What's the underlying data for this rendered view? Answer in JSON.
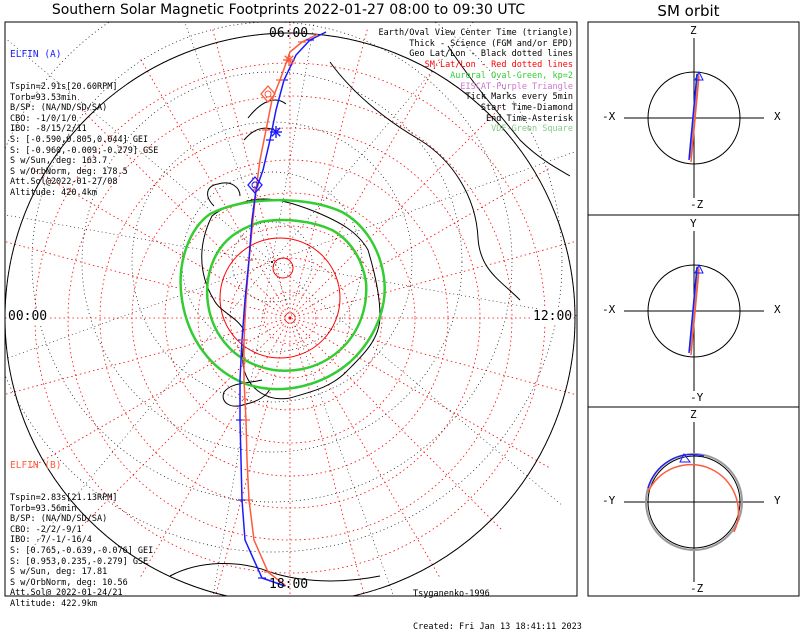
{
  "title": "Southern Solar Magnetic Footprints 2022-01-27 08:00 to 09:30 UTC",
  "orbit_title": "SM orbit",
  "time_labels": {
    "top": "06:00",
    "left": "00:00",
    "right": "12:00",
    "bottom": "18:00"
  },
  "elfin_a": {
    "name": "ELFIN (A)",
    "color": "#1a1aff",
    "lines": [
      "Tspin=2.91s[20.60RPM]",
      "Torb=93.53min",
      "B/SP: (NA/ND/SD/SA)",
      "CBO: -1/0/1/0",
      "IBO: -8/15/2/11",
      "S: [-0.590,0.805,0.044] GEI",
      "S: [-0.960,-0.009,-0.279] GSE",
      "S w/Sun, deg: 163.7",
      "S w/OrbNorm, deg: 178.5",
      "Att.Sol@2022-01-27/08",
      "Altitude: 420.4km"
    ]
  },
  "elfin_b": {
    "name": "ELFIN (B)",
    "color": "#ff5a3c",
    "lines": [
      "Tspin=2.83s[21.13RPM]",
      "Torb=93.56min",
      "B/SP: (NA/ND/SD/SA)",
      "CBO: -2/2/-9/1",
      "IBO: -7/-1/-16/4",
      "S: [0.765,-0.639,-0.076] GEI",
      "S: [0.953,0.235,-0.279] GSE",
      "S w/Sun, deg: 17.81",
      "S w/OrbNorm, deg: 10.56",
      "Att.Sol@ 2022-01-24/21",
      "Altitude: 422.9km"
    ]
  },
  "legend": [
    {
      "text": "Earth/Oval View Center Time (triangle)",
      "color": "#000000"
    },
    {
      "text": "Thick - Science (FGM and/or EPD)",
      "color": "#000000"
    },
    {
      "text": "Geo Lat/Lon - Black dotted lines",
      "color": "#000000"
    },
    {
      "text": "SM Lat/Lon - Red dotted lines",
      "color": "#ff0000"
    },
    {
      "text": "Auroral Oval-Green, kp=2",
      "color": "#33cc33"
    },
    {
      "text": "EISCAT-Purple Triangle",
      "color": "#cc77cc"
    },
    {
      "text": "Tick Marks every 5min",
      "color": "#000000"
    },
    {
      "text": "Start Time-Diamond",
      "color": "#000000"
    },
    {
      "text": "End Time-Asterisk",
      "color": "#000000"
    },
    {
      "text": "VDF-Green Square",
      "color": "#88cc88"
    }
  ],
  "credit": {
    "model": "Tsyganenko-1996",
    "created": "Created: Fri Jan 13 18:41:11 2023"
  },
  "orbit_panels": [
    {
      "top": "Z",
      "bottom": "-Z",
      "left": "-X",
      "right": "X"
    },
    {
      "top": "Y",
      "bottom": "-Y",
      "left": "-X",
      "right": "X"
    },
    {
      "top": "Z",
      "bottom": "-Z",
      "left": "-Y",
      "right": "Y"
    }
  ],
  "colors": {
    "sm_grid": "#ff0000",
    "geo_grid": "#000000",
    "oval": "#33cc33",
    "elfin_a": "#1a1aff",
    "elfin_b": "#ff5a3c"
  },
  "chart_data": {
    "type": "polar-map",
    "projection": "south pole",
    "time_span": "2022-01-27 08:00 to 09:30 UTC",
    "magnetic_local_time_labels": [
      "06:00",
      "12:00",
      "18:00",
      "00:00"
    ],
    "tick_interval_min": 5,
    "kp": 2,
    "series": [
      {
        "name": "ELFIN (A)",
        "color": "#1a1aff"
      },
      {
        "name": "ELFIN (B)",
        "color": "#ff5a3c"
      }
    ]
  }
}
